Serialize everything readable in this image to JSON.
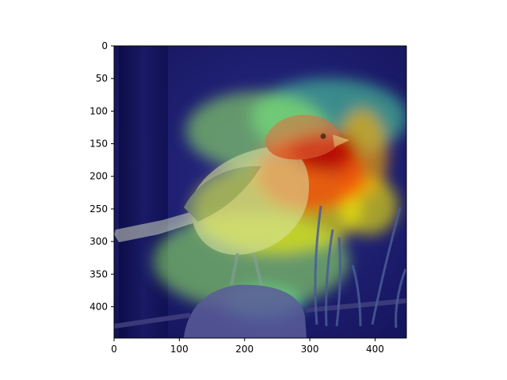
{
  "chart_data": {
    "type": "heatmap",
    "title": "",
    "xlabel": "",
    "ylabel": "",
    "xlim": [
      0,
      448
    ],
    "ylim": [
      448,
      0
    ],
    "x_ticks": [
      0,
      100,
      200,
      300,
      400
    ],
    "y_ticks": [
      0,
      50,
      100,
      150,
      200,
      250,
      300,
      350,
      400
    ],
    "colormap": "jet",
    "grid": false,
    "background_subject": "bird-photo-with-heatmap-overlay",
    "heat_regions": [
      {
        "x": 320,
        "y": 160,
        "rx": 55,
        "ry": 32,
        "level": 1.0
      },
      {
        "x": 300,
        "y": 195,
        "rx": 85,
        "ry": 60,
        "level": 0.8
      },
      {
        "x": 380,
        "y": 165,
        "rx": 40,
        "ry": 70,
        "level": 0.65
      },
      {
        "x": 390,
        "y": 245,
        "rx": 45,
        "ry": 45,
        "level": 0.55
      },
      {
        "x": 250,
        "y": 250,
        "rx": 130,
        "ry": 70,
        "level": 0.55
      },
      {
        "x": 220,
        "y": 130,
        "rx": 110,
        "ry": 60,
        "level": 0.4
      },
      {
        "x": 210,
        "y": 330,
        "rx": 150,
        "ry": 75,
        "level": 0.4
      },
      {
        "x": 330,
        "y": 110,
        "rx": 120,
        "ry": 60,
        "level": 0.3
      },
      {
        "x": 230,
        "y": 395,
        "rx": 60,
        "ry": 28,
        "level": 0.25
      }
    ]
  },
  "colors": {
    "frame": "#000000",
    "jet_low": "#000080",
    "jet_mid": "#2fd6c8",
    "jet_high": "#d10d0d"
  }
}
